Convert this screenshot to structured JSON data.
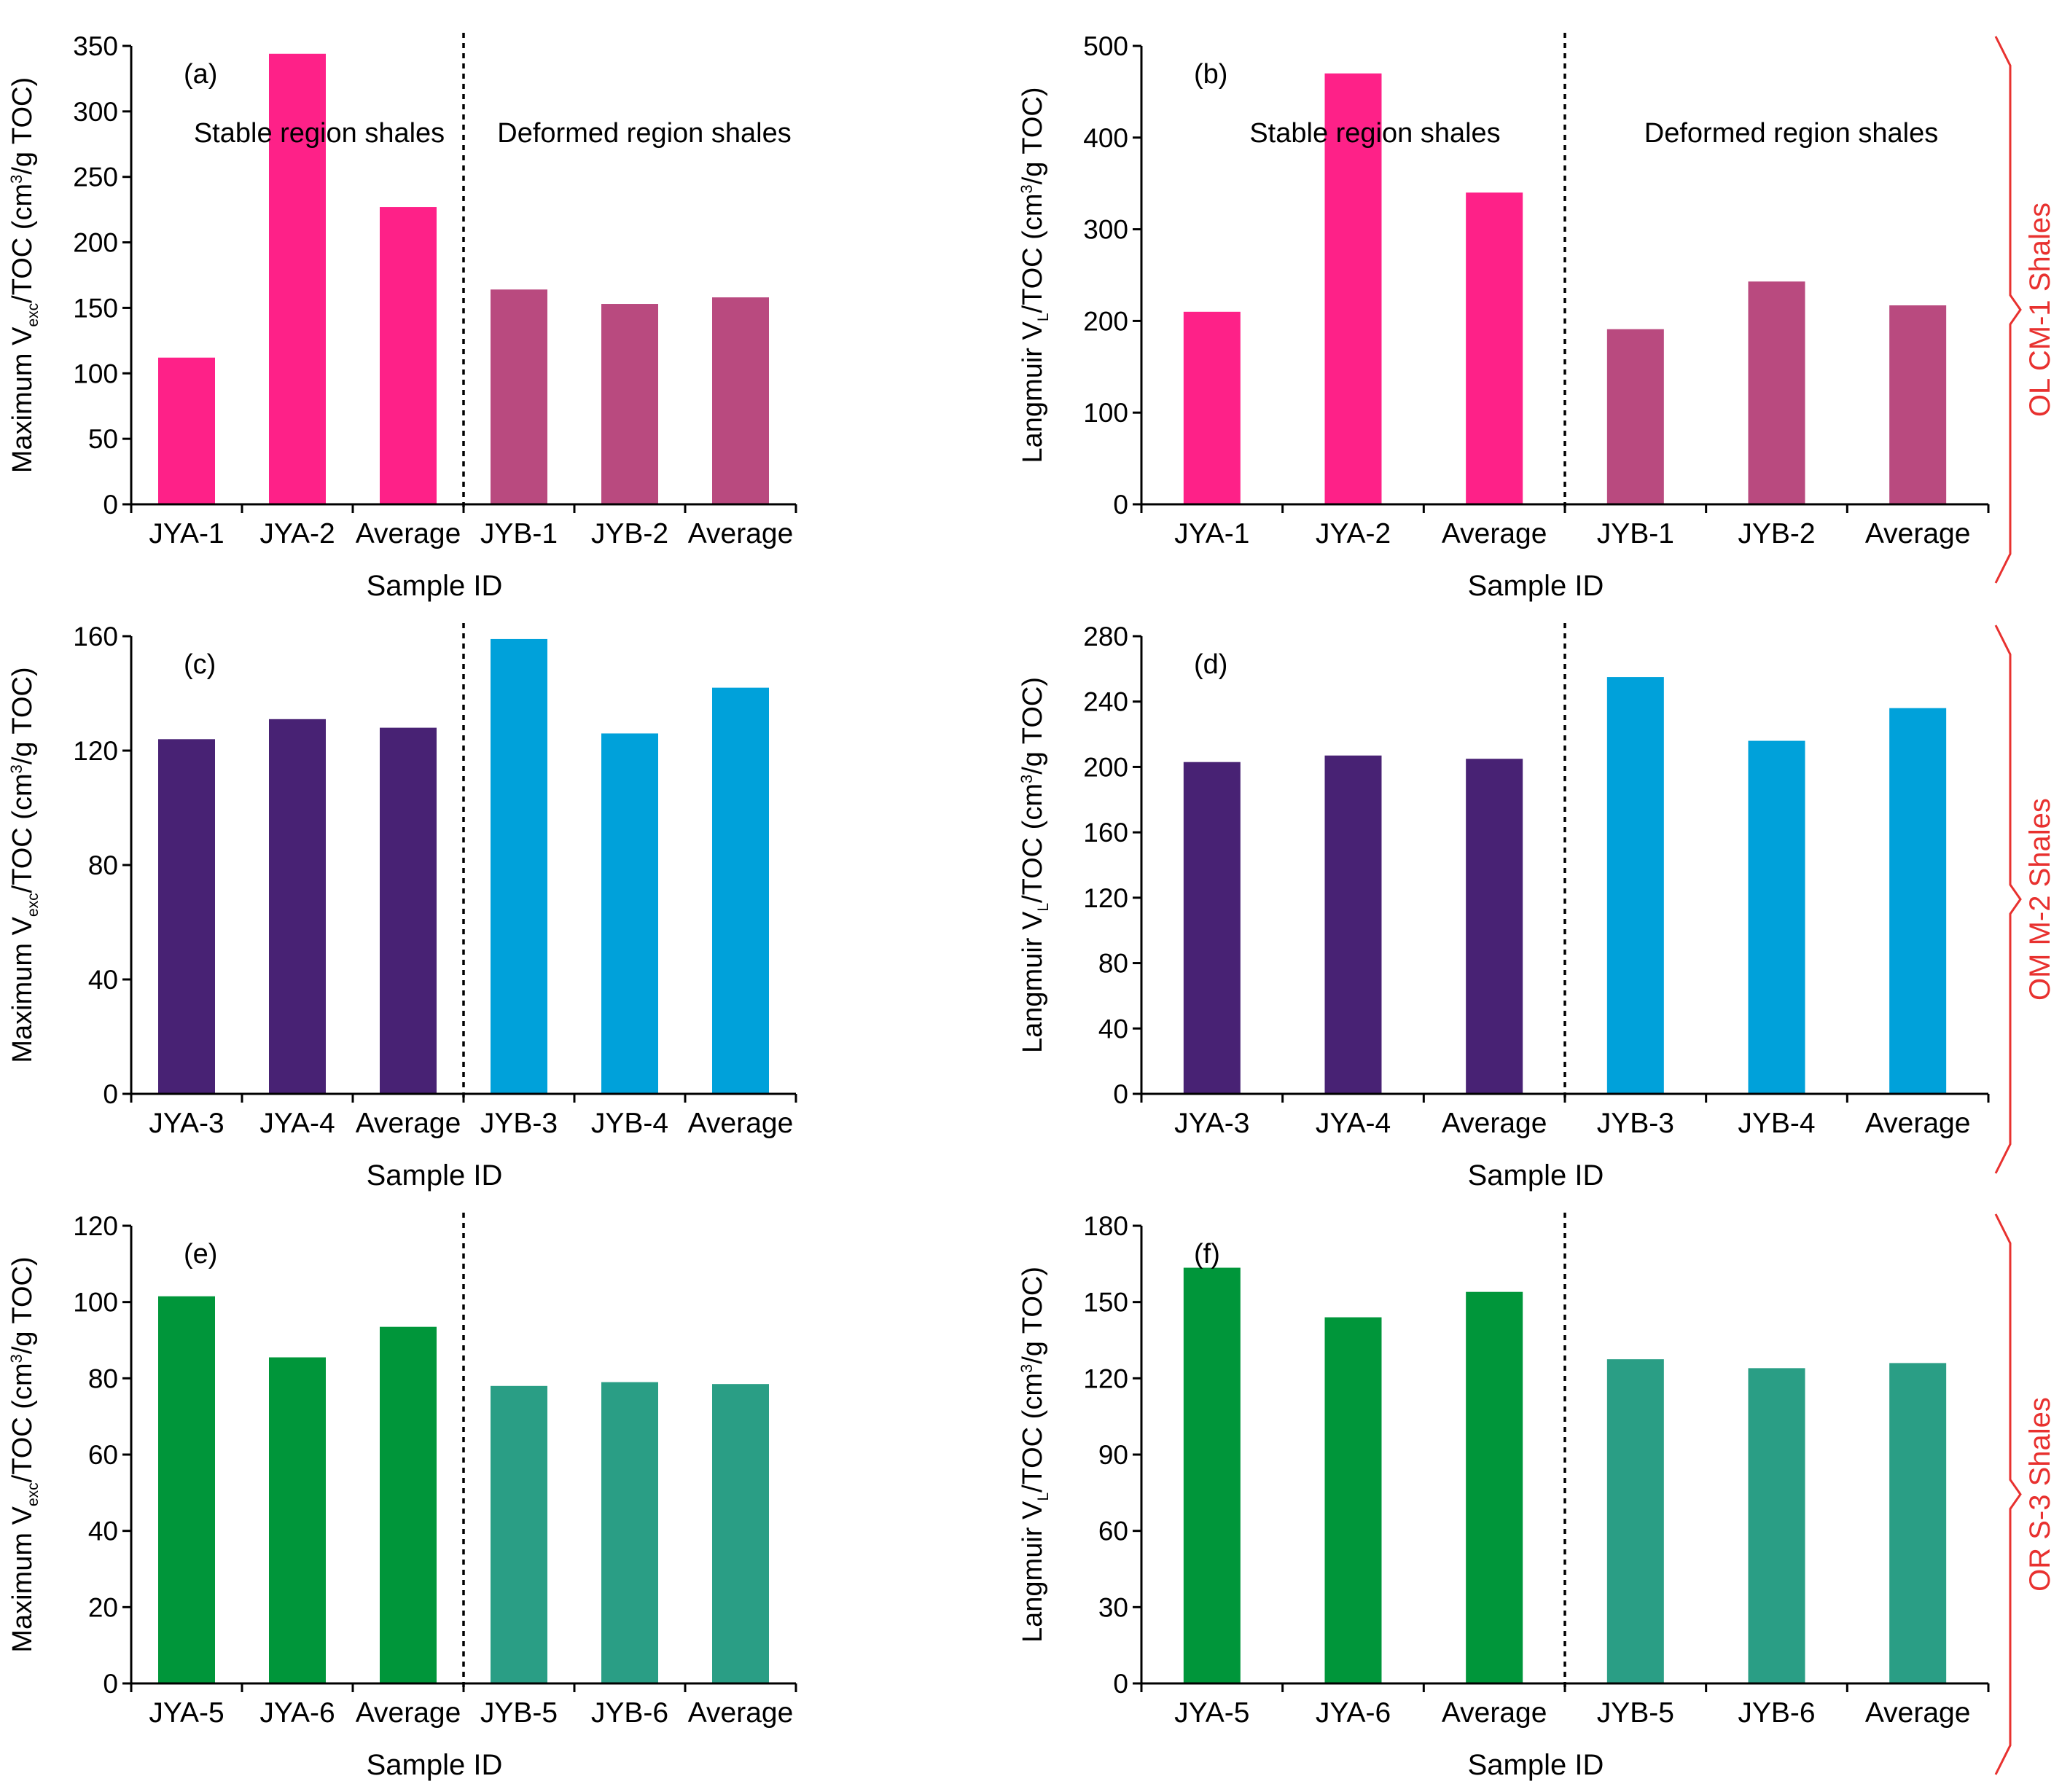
{
  "figure": {
    "x_axis_label": "Sample ID",
    "region_labels": {
      "stable": "Stable region shales",
      "deformed": "Deformed region shales"
    },
    "groups": [
      {
        "label": "OL CM-1 Shales",
        "color": "#e8312f"
      },
      {
        "label": "OM M-2 Shales",
        "color": "#e8312f"
      },
      {
        "label": "OR S-3 Shales",
        "color": "#e8312f"
      }
    ],
    "y_labels": {
      "vexc": {
        "prefix": "Maximum V",
        "sub": "exc",
        "mid": "/TOC (cm",
        "sup": "3",
        "end": "/g TOC)"
      },
      "langmuir": {
        "prefix": "Langmuir V",
        "sub": "L",
        "mid": "/TOC (cm",
        "sup": "3",
        "end": "/g TOC)"
      }
    }
  },
  "chart_data": [
    {
      "panel": "(a)",
      "type": "bar",
      "row": 0,
      "col": 0,
      "ylabel": "vexc",
      "categories": [
        "JYA-1",
        "JYA-2",
        "Average",
        "JYB-1",
        "JYB-2",
        "Average"
      ],
      "values": [
        112,
        344,
        227,
        164,
        153,
        158
      ],
      "colors": [
        "#fe2188",
        "#fe2188",
        "#fe2188",
        "#b94a7f",
        "#b94a7f",
        "#b94a7f"
      ],
      "ylim": [
        0,
        350
      ],
      "yticks": [
        0,
        50,
        100,
        150,
        200,
        250,
        300,
        350
      ],
      "show_region_labels": true,
      "divider_after_index": 2
    },
    {
      "panel": "(b)",
      "type": "bar",
      "row": 0,
      "col": 1,
      "ylabel": "langmuir",
      "categories": [
        "JYA-1",
        "JYA-2",
        "Average",
        "JYB-1",
        "JYB-2",
        "Average"
      ],
      "values": [
        210,
        470,
        340,
        191,
        243,
        217
      ],
      "colors": [
        "#fe2188",
        "#fe2188",
        "#fe2188",
        "#b94a7f",
        "#b94a7f",
        "#b94a7f"
      ],
      "ylim": [
        0,
        500
      ],
      "yticks": [
        0,
        100,
        200,
        300,
        400,
        500
      ],
      "show_region_labels": true,
      "divider_after_index": 2
    },
    {
      "panel": "(c)",
      "type": "bar",
      "row": 1,
      "col": 0,
      "ylabel": "vexc",
      "categories": [
        "JYA-3",
        "JYA-4",
        "Average",
        "JYB-3",
        "JYB-4",
        "Average"
      ],
      "values": [
        124,
        131,
        128,
        159,
        126,
        142
      ],
      "colors": [
        "#482274",
        "#482274",
        "#482274",
        "#00a1da",
        "#00a1da",
        "#00a1da"
      ],
      "ylim": [
        0,
        160
      ],
      "yticks": [
        0,
        40,
        80,
        120,
        160
      ],
      "show_region_labels": false,
      "divider_after_index": 2
    },
    {
      "panel": "(d)",
      "type": "bar",
      "row": 1,
      "col": 1,
      "ylabel": "langmuir",
      "categories": [
        "JYA-3",
        "JYA-4",
        "Average",
        "JYB-3",
        "JYB-4",
        "Average"
      ],
      "values": [
        203,
        207,
        205,
        255,
        216,
        236
      ],
      "colors": [
        "#482274",
        "#482274",
        "#482274",
        "#00a1da",
        "#00a1da",
        "#00a1da"
      ],
      "ylim": [
        0,
        280
      ],
      "yticks": [
        0,
        40,
        80,
        120,
        160,
        200,
        240,
        280
      ],
      "show_region_labels": false,
      "divider_after_index": 2
    },
    {
      "panel": "(e)",
      "type": "bar",
      "row": 2,
      "col": 0,
      "ylabel": "vexc",
      "categories": [
        "JYA-5",
        "JYA-6",
        "Average",
        "JYB-5",
        "JYB-6",
        "Average"
      ],
      "values": [
        101.5,
        85.5,
        93.5,
        78,
        79,
        78.5
      ],
      "colors": [
        "#00963a",
        "#00963a",
        "#00963a",
        "#2a9e85",
        "#2a9e85",
        "#2a9e85"
      ],
      "ylim": [
        0,
        120
      ],
      "yticks": [
        0,
        20,
        40,
        60,
        80,
        100,
        120
      ],
      "show_region_labels": false,
      "divider_after_index": 2
    },
    {
      "panel": "(f)",
      "type": "bar",
      "row": 2,
      "col": 1,
      "ylabel": "langmuir",
      "categories": [
        "JYA-5",
        "JYA-6",
        "Average",
        "JYB-5",
        "JYB-6",
        "Average"
      ],
      "values": [
        163.5,
        144,
        154,
        127.5,
        124,
        126
      ],
      "colors": [
        "#00963a",
        "#00963a",
        "#00963a",
        "#2a9e85",
        "#2a9e85",
        "#2a9e85"
      ],
      "ylim": [
        0,
        180
      ],
      "yticks": [
        0,
        30,
        60,
        90,
        120,
        150,
        180
      ],
      "show_region_labels": false,
      "divider_after_index": 2
    }
  ]
}
